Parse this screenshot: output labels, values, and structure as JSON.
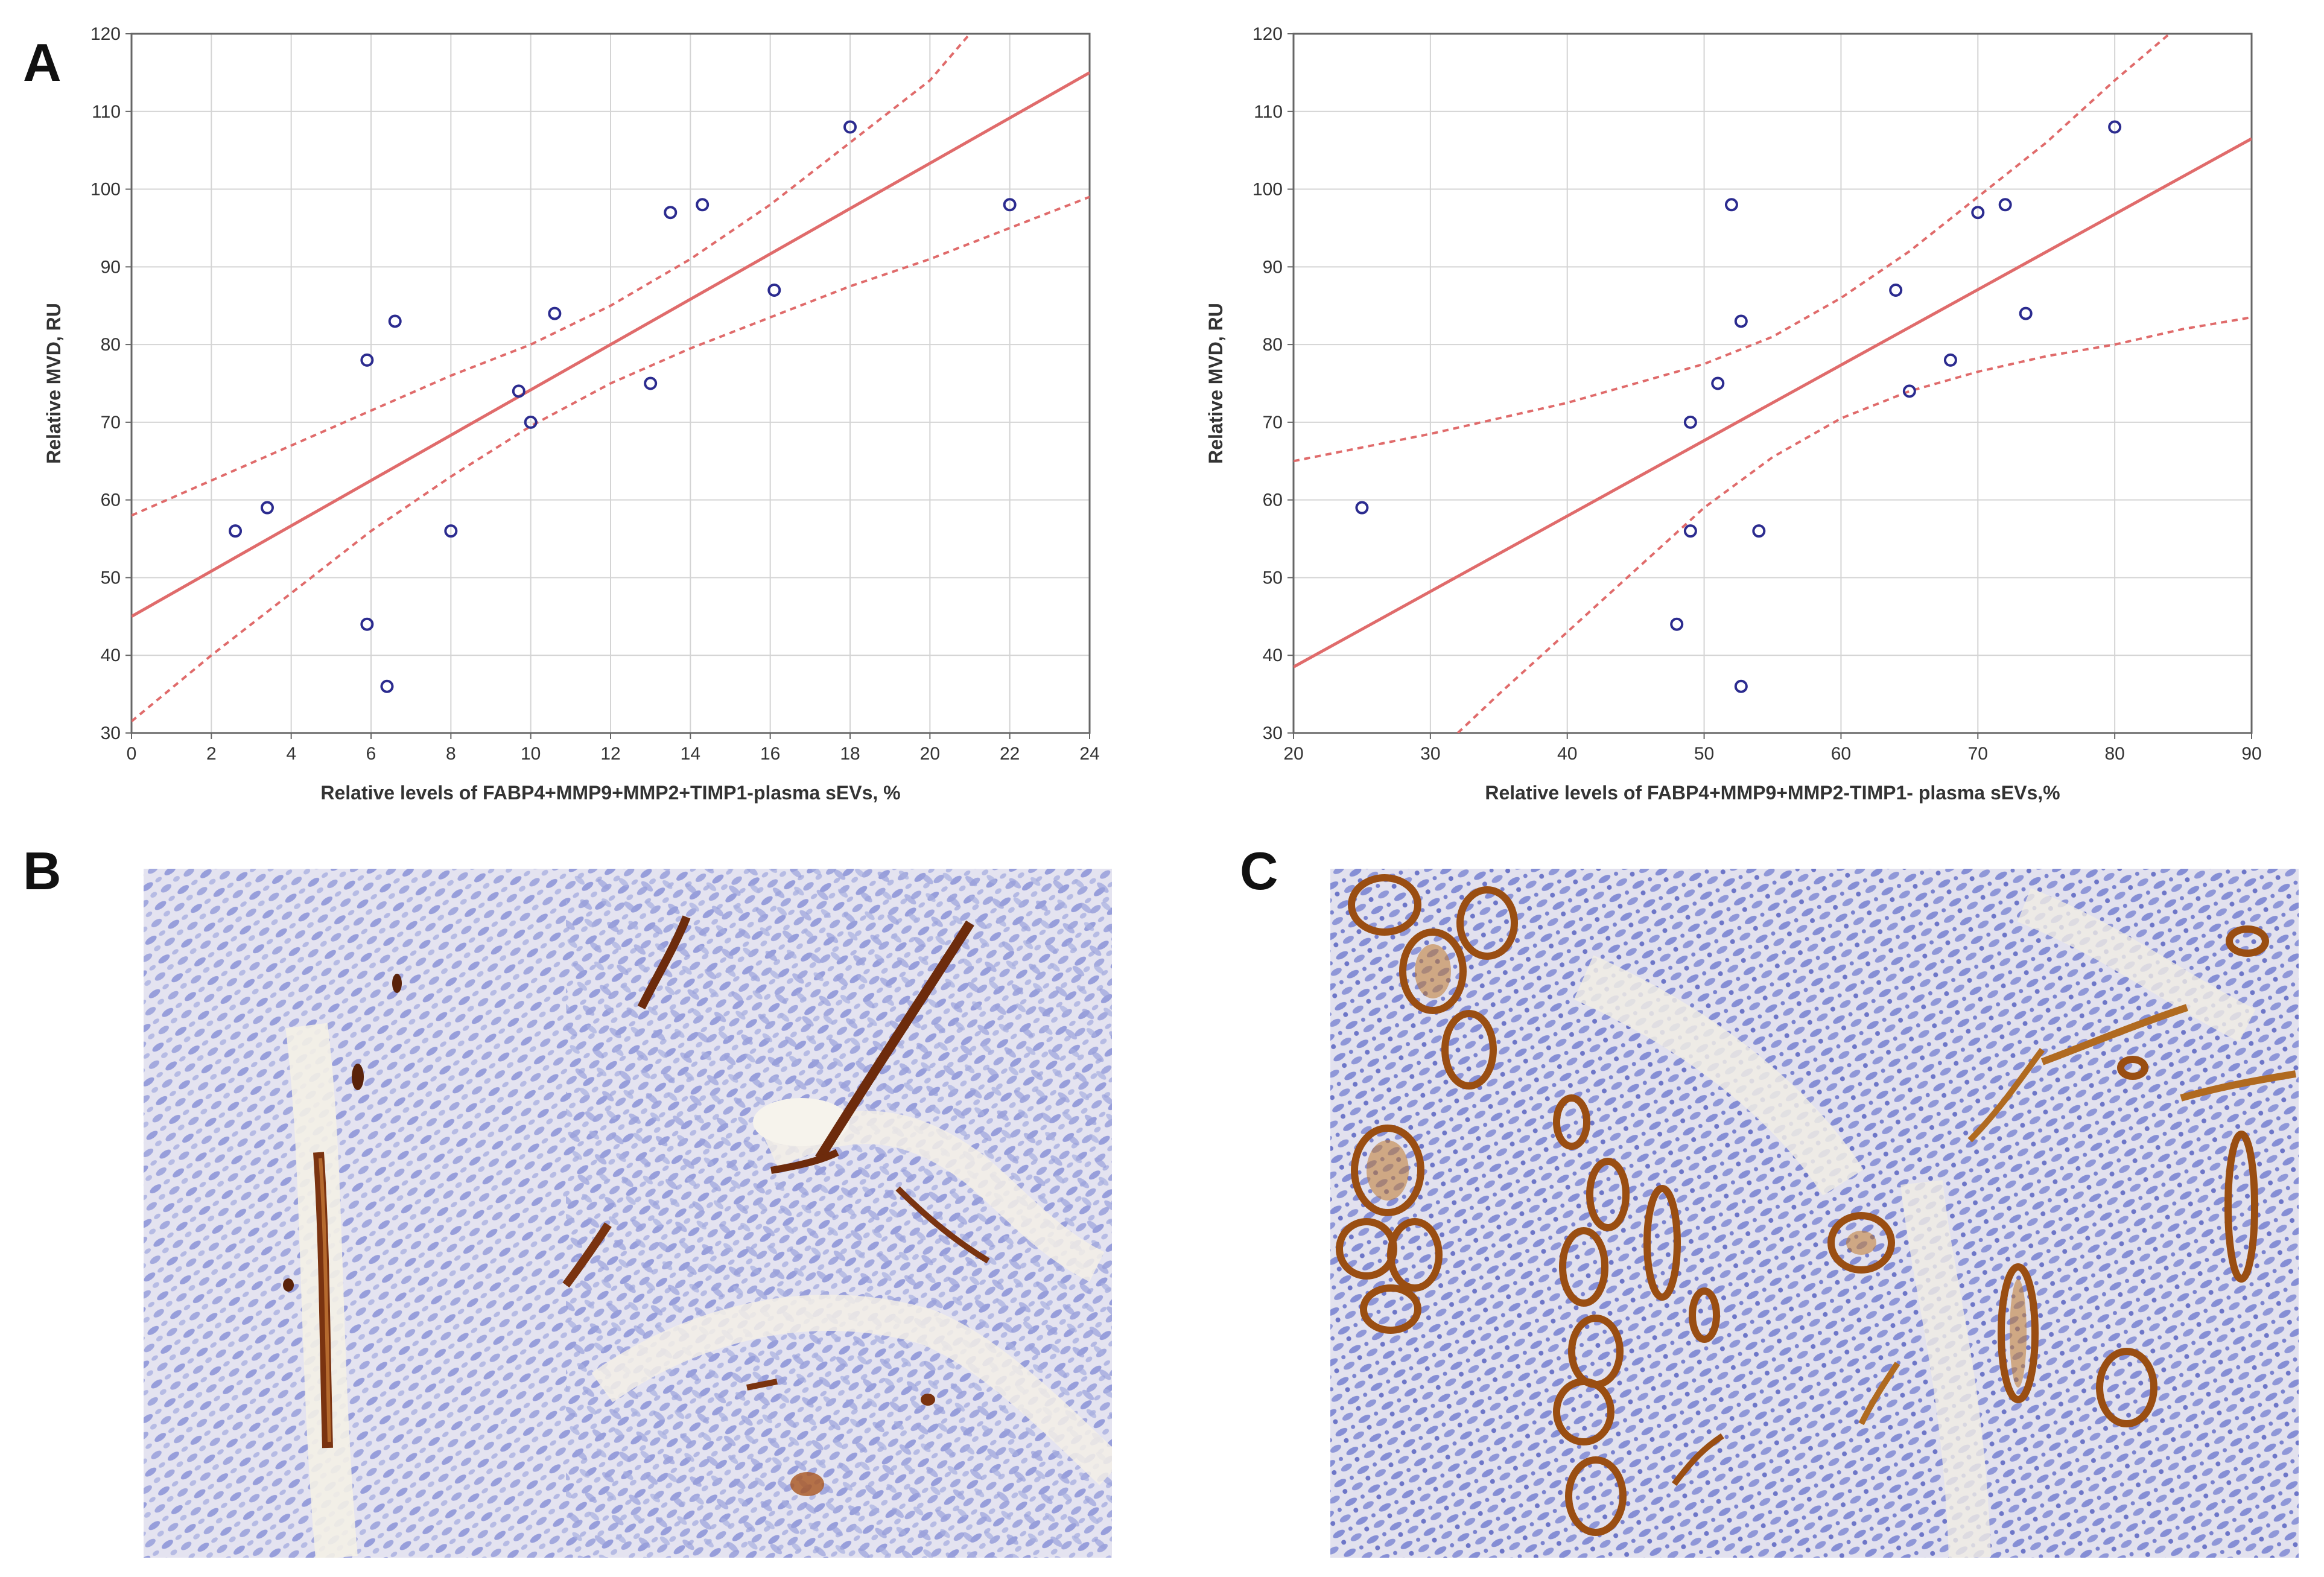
{
  "panels": {
    "a": "A",
    "b": "B",
    "c": "C"
  },
  "colors": {
    "fit_line": "#e06b6b",
    "ci_line": "#e06b6b",
    "points": "#2b2b8f",
    "grid": "#d4d4d4",
    "tissue_background": "#e9e6f0",
    "nuclei": "#8a92d8",
    "vessel_stain": "#8a3d12"
  },
  "chart_data": [
    {
      "type": "scatter",
      "panel": "A",
      "title": "",
      "xlabel": "Relative levels of FABP4+MMP9+MMP2+TIMP1-plasma sEVs, %",
      "ylabel": "Relative MVD, RU",
      "xlim": [
        0,
        24
      ],
      "ylim": [
        30,
        120
      ],
      "xticks": [
        0,
        2,
        4,
        6,
        8,
        10,
        12,
        14,
        16,
        18,
        20,
        22,
        24
      ],
      "yticks": [
        30,
        40,
        50,
        60,
        70,
        80,
        90,
        100,
        110,
        120
      ],
      "grid": true,
      "points": [
        {
          "x": 2.6,
          "y": 56
        },
        {
          "x": 3.4,
          "y": 59
        },
        {
          "x": 5.9,
          "y": 78
        },
        {
          "x": 5.9,
          "y": 44
        },
        {
          "x": 6.4,
          "y": 36
        },
        {
          "x": 6.6,
          "y": 83
        },
        {
          "x": 8.0,
          "y": 56
        },
        {
          "x": 9.7,
          "y": 74
        },
        {
          "x": 10.0,
          "y": 70
        },
        {
          "x": 10.6,
          "y": 84
        },
        {
          "x": 13.0,
          "y": 75
        },
        {
          "x": 13.5,
          "y": 97
        },
        {
          "x": 14.3,
          "y": 98
        },
        {
          "x": 16.1,
          "y": 87
        },
        {
          "x": 18.0,
          "y": 108
        },
        {
          "x": 22.0,
          "y": 98
        }
      ],
      "fit": {
        "x": [
          0,
          24
        ],
        "y": [
          45,
          115
        ]
      },
      "ci_upper": {
        "x": [
          0,
          4,
          8,
          10,
          12,
          14,
          16,
          18,
          20,
          21
        ],
        "y": [
          58,
          67,
          76,
          80,
          85,
          91,
          98,
          106,
          114,
          120
        ]
      },
      "ci_lower": {
        "x": [
          0,
          2,
          4,
          6,
          8,
          10,
          12,
          14,
          16,
          18,
          20,
          22,
          24
        ],
        "y": [
          31.5,
          40,
          48,
          56,
          63,
          69.5,
          75,
          79.5,
          83.5,
          87.5,
          91,
          95,
          99
        ]
      }
    },
    {
      "type": "scatter",
      "panel": "A-right",
      "title": "",
      "xlabel": "Relative levels of FABP4+MMP9+MMP2-TIMP1- plasma sEVs,%",
      "ylabel": "Relative MVD, RU",
      "xlim": [
        20,
        90
      ],
      "ylim": [
        30,
        120
      ],
      "xticks": [
        20,
        30,
        40,
        50,
        60,
        70,
        80,
        90
      ],
      "yticks": [
        30,
        40,
        50,
        60,
        70,
        80,
        90,
        100,
        110,
        120
      ],
      "grid": true,
      "points": [
        {
          "x": 25,
          "y": 59
        },
        {
          "x": 48,
          "y": 44
        },
        {
          "x": 49,
          "y": 70
        },
        {
          "x": 49,
          "y": 56
        },
        {
          "x": 51,
          "y": 75
        },
        {
          "x": 52,
          "y": 98
        },
        {
          "x": 52.7,
          "y": 83
        },
        {
          "x": 52.7,
          "y": 36
        },
        {
          "x": 54,
          "y": 56
        },
        {
          "x": 64,
          "y": 87
        },
        {
          "x": 65,
          "y": 74
        },
        {
          "x": 68,
          "y": 78
        },
        {
          "x": 70,
          "y": 97
        },
        {
          "x": 72,
          "y": 98
        },
        {
          "x": 73.5,
          "y": 84
        },
        {
          "x": 80,
          "y": 108
        }
      ],
      "fit": {
        "x": [
          20,
          90
        ],
        "y": [
          38.5,
          106.5
        ]
      },
      "ci_upper": {
        "x": [
          20,
          30,
          40,
          50,
          55,
          60,
          65,
          70,
          75,
          80,
          84
        ],
        "y": [
          65,
          68.5,
          72.5,
          77.5,
          81,
          86,
          92,
          99,
          106,
          114,
          120
        ]
      },
      "ci_lower": {
        "x": [
          32,
          35,
          40,
          45,
          50,
          55,
          60,
          65,
          70,
          75,
          80,
          85,
          90
        ],
        "y": [
          30,
          35,
          43,
          51,
          59,
          65.5,
          70.5,
          74,
          76.5,
          78.5,
          80,
          82,
          83.5
        ]
      }
    }
  ],
  "images": {
    "b": "immunohistochemistry-micrograph-sparse-vessels",
    "c": "immunohistochemistry-micrograph-dense-vessels"
  }
}
